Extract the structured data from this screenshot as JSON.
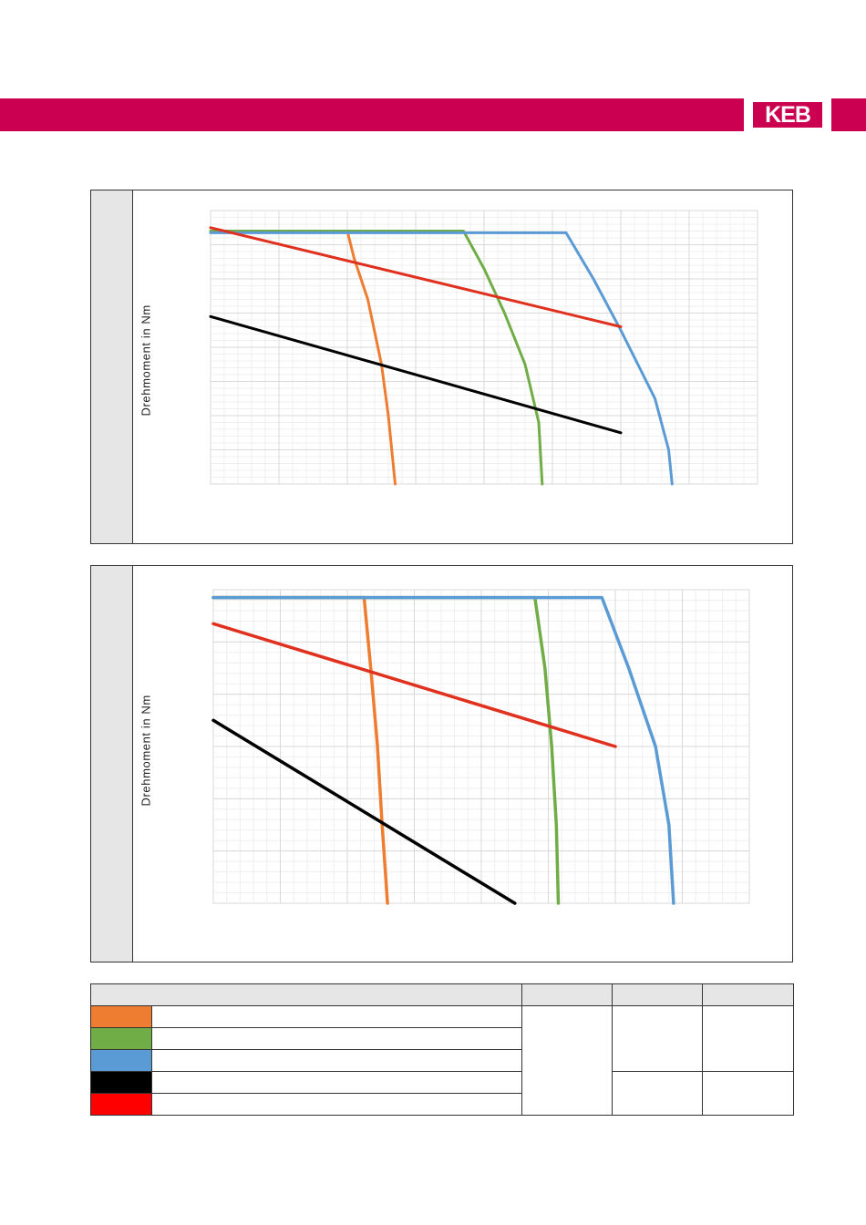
{
  "header": {
    "logo_text": "KEB",
    "brand_color": "#cc0050"
  },
  "colors": {
    "orange": "#ee7d31",
    "green": "#70ad47",
    "blue": "#5b9bd5",
    "black": "#000000",
    "red": "#ff0000",
    "line_red": "#e0301e",
    "panel_side": "#e6e6e6"
  },
  "chart_data": [
    {
      "type": "line",
      "title": "",
      "ylabel": "Drehmoment in Nm",
      "xlabel": "",
      "grid": true,
      "xlim": [
        0,
        8
      ],
      "ylim": [
        0,
        8
      ],
      "series": [
        {
          "color": "orange",
          "points": [
            [
              0,
              7.4
            ],
            [
              2.0,
              7.4
            ],
            [
              2.1,
              6.6
            ],
            [
              2.3,
              5.4
            ],
            [
              2.5,
              3.5
            ],
            [
              2.6,
              2.0
            ],
            [
              2.7,
              0
            ]
          ]
        },
        {
          "color": "green",
          "points": [
            [
              0,
              7.4
            ],
            [
              3.7,
              7.4
            ],
            [
              4.0,
              6.3
            ],
            [
              4.3,
              5.0
            ],
            [
              4.6,
              3.5
            ],
            [
              4.8,
              1.8
            ],
            [
              4.85,
              0
            ]
          ]
        },
        {
          "color": "blue",
          "points": [
            [
              0,
              7.35
            ],
            [
              5.2,
              7.35
            ],
            [
              5.6,
              6.0
            ],
            [
              6.0,
              4.5
            ],
            [
              6.5,
              2.5
            ],
            [
              6.7,
              1.0
            ],
            [
              6.75,
              0
            ]
          ]
        },
        {
          "color": "black",
          "points": [
            [
              0,
              4.9
            ],
            [
              6.0,
              1.5
            ]
          ]
        },
        {
          "color": "line_red",
          "points": [
            [
              0,
              7.5
            ],
            [
              6.0,
              4.6
            ]
          ]
        }
      ]
    },
    {
      "type": "line",
      "title": "",
      "ylabel": "Drehmoment in Nm",
      "xlabel": "",
      "grid": true,
      "xlim": [
        0,
        8
      ],
      "ylim": [
        0,
        6
      ],
      "series": [
        {
          "color": "orange",
          "points": [
            [
              0,
              5.85
            ],
            [
              2.25,
              5.85
            ],
            [
              2.35,
              4.5
            ],
            [
              2.45,
              3.0
            ],
            [
              2.52,
              1.5
            ],
            [
              2.6,
              0
            ]
          ]
        },
        {
          "color": "green",
          "points": [
            [
              0,
              5.85
            ],
            [
              4.8,
              5.85
            ],
            [
              4.95,
              4.5
            ],
            [
              5.05,
              3.0
            ],
            [
              5.12,
              1.5
            ],
            [
              5.15,
              0
            ]
          ]
        },
        {
          "color": "blue",
          "points": [
            [
              0,
              5.85
            ],
            [
              5.8,
              5.85
            ],
            [
              6.2,
              4.5
            ],
            [
              6.6,
              3.0
            ],
            [
              6.8,
              1.5
            ],
            [
              6.87,
              0
            ]
          ]
        },
        {
          "color": "black",
          "points": [
            [
              0,
              3.5
            ],
            [
              4.5,
              0
            ]
          ]
        },
        {
          "color": "line_red",
          "points": [
            [
              0,
              5.35
            ],
            [
              6.0,
              3.0
            ]
          ]
        }
      ]
    }
  ],
  "legend_table": {
    "header": [
      "",
      "",
      "",
      ""
    ],
    "swatches": [
      "orange",
      "green",
      "blue",
      "black",
      "red"
    ],
    "rows": [
      "",
      "",
      "",
      "",
      ""
    ]
  }
}
